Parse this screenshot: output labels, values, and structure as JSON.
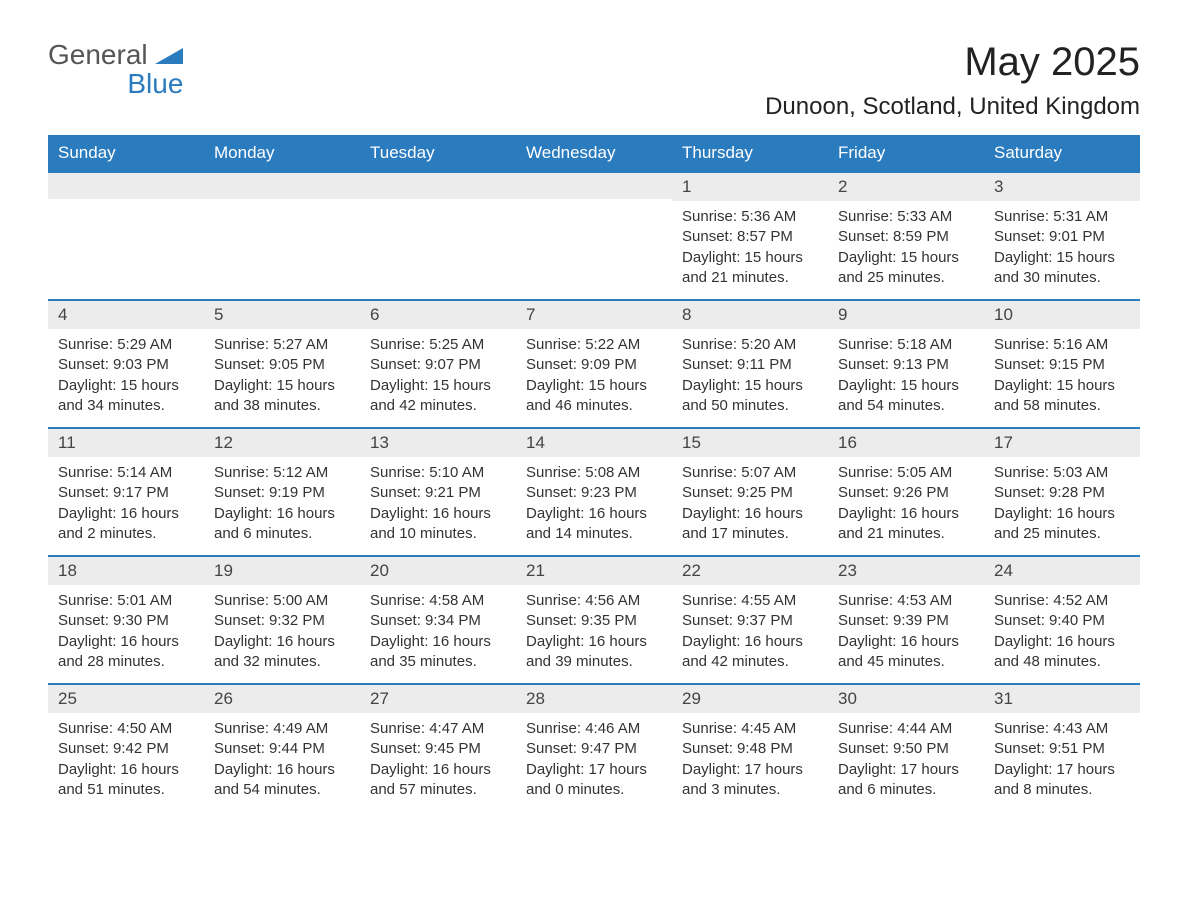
{
  "logo": {
    "general": "General",
    "blue": "Blue"
  },
  "title": "May 2025",
  "location": "Dunoon, Scotland, United Kingdom",
  "colors": {
    "header_bg": "#2b7bbf",
    "header_text": "#ffffff",
    "daynum_bg": "#ececec",
    "border": "#2b7bbf",
    "body_text": "#333333",
    "background": "#ffffff"
  },
  "days_of_week": [
    "Sunday",
    "Monday",
    "Tuesday",
    "Wednesday",
    "Thursday",
    "Friday",
    "Saturday"
  ],
  "calendar": {
    "type": "table",
    "columns": 7,
    "weeks": [
      [
        null,
        null,
        null,
        null,
        {
          "n": "1",
          "sunrise": "Sunrise: 5:36 AM",
          "sunset": "Sunset: 8:57 PM",
          "day1": "Daylight: 15 hours",
          "day2": "and 21 minutes."
        },
        {
          "n": "2",
          "sunrise": "Sunrise: 5:33 AM",
          "sunset": "Sunset: 8:59 PM",
          "day1": "Daylight: 15 hours",
          "day2": "and 25 minutes."
        },
        {
          "n": "3",
          "sunrise": "Sunrise: 5:31 AM",
          "sunset": "Sunset: 9:01 PM",
          "day1": "Daylight: 15 hours",
          "day2": "and 30 minutes."
        }
      ],
      [
        {
          "n": "4",
          "sunrise": "Sunrise: 5:29 AM",
          "sunset": "Sunset: 9:03 PM",
          "day1": "Daylight: 15 hours",
          "day2": "and 34 minutes."
        },
        {
          "n": "5",
          "sunrise": "Sunrise: 5:27 AM",
          "sunset": "Sunset: 9:05 PM",
          "day1": "Daylight: 15 hours",
          "day2": "and 38 minutes."
        },
        {
          "n": "6",
          "sunrise": "Sunrise: 5:25 AM",
          "sunset": "Sunset: 9:07 PM",
          "day1": "Daylight: 15 hours",
          "day2": "and 42 minutes."
        },
        {
          "n": "7",
          "sunrise": "Sunrise: 5:22 AM",
          "sunset": "Sunset: 9:09 PM",
          "day1": "Daylight: 15 hours",
          "day2": "and 46 minutes."
        },
        {
          "n": "8",
          "sunrise": "Sunrise: 5:20 AM",
          "sunset": "Sunset: 9:11 PM",
          "day1": "Daylight: 15 hours",
          "day2": "and 50 minutes."
        },
        {
          "n": "9",
          "sunrise": "Sunrise: 5:18 AM",
          "sunset": "Sunset: 9:13 PM",
          "day1": "Daylight: 15 hours",
          "day2": "and 54 minutes."
        },
        {
          "n": "10",
          "sunrise": "Sunrise: 5:16 AM",
          "sunset": "Sunset: 9:15 PM",
          "day1": "Daylight: 15 hours",
          "day2": "and 58 minutes."
        }
      ],
      [
        {
          "n": "11",
          "sunrise": "Sunrise: 5:14 AM",
          "sunset": "Sunset: 9:17 PM",
          "day1": "Daylight: 16 hours",
          "day2": "and 2 minutes."
        },
        {
          "n": "12",
          "sunrise": "Sunrise: 5:12 AM",
          "sunset": "Sunset: 9:19 PM",
          "day1": "Daylight: 16 hours",
          "day2": "and 6 minutes."
        },
        {
          "n": "13",
          "sunrise": "Sunrise: 5:10 AM",
          "sunset": "Sunset: 9:21 PM",
          "day1": "Daylight: 16 hours",
          "day2": "and 10 minutes."
        },
        {
          "n": "14",
          "sunrise": "Sunrise: 5:08 AM",
          "sunset": "Sunset: 9:23 PM",
          "day1": "Daylight: 16 hours",
          "day2": "and 14 minutes."
        },
        {
          "n": "15",
          "sunrise": "Sunrise: 5:07 AM",
          "sunset": "Sunset: 9:25 PM",
          "day1": "Daylight: 16 hours",
          "day2": "and 17 minutes."
        },
        {
          "n": "16",
          "sunrise": "Sunrise: 5:05 AM",
          "sunset": "Sunset: 9:26 PM",
          "day1": "Daylight: 16 hours",
          "day2": "and 21 minutes."
        },
        {
          "n": "17",
          "sunrise": "Sunrise: 5:03 AM",
          "sunset": "Sunset: 9:28 PM",
          "day1": "Daylight: 16 hours",
          "day2": "and 25 minutes."
        }
      ],
      [
        {
          "n": "18",
          "sunrise": "Sunrise: 5:01 AM",
          "sunset": "Sunset: 9:30 PM",
          "day1": "Daylight: 16 hours",
          "day2": "and 28 minutes."
        },
        {
          "n": "19",
          "sunrise": "Sunrise: 5:00 AM",
          "sunset": "Sunset: 9:32 PM",
          "day1": "Daylight: 16 hours",
          "day2": "and 32 minutes."
        },
        {
          "n": "20",
          "sunrise": "Sunrise: 4:58 AM",
          "sunset": "Sunset: 9:34 PM",
          "day1": "Daylight: 16 hours",
          "day2": "and 35 minutes."
        },
        {
          "n": "21",
          "sunrise": "Sunrise: 4:56 AM",
          "sunset": "Sunset: 9:35 PM",
          "day1": "Daylight: 16 hours",
          "day2": "and 39 minutes."
        },
        {
          "n": "22",
          "sunrise": "Sunrise: 4:55 AM",
          "sunset": "Sunset: 9:37 PM",
          "day1": "Daylight: 16 hours",
          "day2": "and 42 minutes."
        },
        {
          "n": "23",
          "sunrise": "Sunrise: 4:53 AM",
          "sunset": "Sunset: 9:39 PM",
          "day1": "Daylight: 16 hours",
          "day2": "and 45 minutes."
        },
        {
          "n": "24",
          "sunrise": "Sunrise: 4:52 AM",
          "sunset": "Sunset: 9:40 PM",
          "day1": "Daylight: 16 hours",
          "day2": "and 48 minutes."
        }
      ],
      [
        {
          "n": "25",
          "sunrise": "Sunrise: 4:50 AM",
          "sunset": "Sunset: 9:42 PM",
          "day1": "Daylight: 16 hours",
          "day2": "and 51 minutes."
        },
        {
          "n": "26",
          "sunrise": "Sunrise: 4:49 AM",
          "sunset": "Sunset: 9:44 PM",
          "day1": "Daylight: 16 hours",
          "day2": "and 54 minutes."
        },
        {
          "n": "27",
          "sunrise": "Sunrise: 4:47 AM",
          "sunset": "Sunset: 9:45 PM",
          "day1": "Daylight: 16 hours",
          "day2": "and 57 minutes."
        },
        {
          "n": "28",
          "sunrise": "Sunrise: 4:46 AM",
          "sunset": "Sunset: 9:47 PM",
          "day1": "Daylight: 17 hours",
          "day2": "and 0 minutes."
        },
        {
          "n": "29",
          "sunrise": "Sunrise: 4:45 AM",
          "sunset": "Sunset: 9:48 PM",
          "day1": "Daylight: 17 hours",
          "day2": "and 3 minutes."
        },
        {
          "n": "30",
          "sunrise": "Sunrise: 4:44 AM",
          "sunset": "Sunset: 9:50 PM",
          "day1": "Daylight: 17 hours",
          "day2": "and 6 minutes."
        },
        {
          "n": "31",
          "sunrise": "Sunrise: 4:43 AM",
          "sunset": "Sunset: 9:51 PM",
          "day1": "Daylight: 17 hours",
          "day2": "and 8 minutes."
        }
      ]
    ]
  }
}
